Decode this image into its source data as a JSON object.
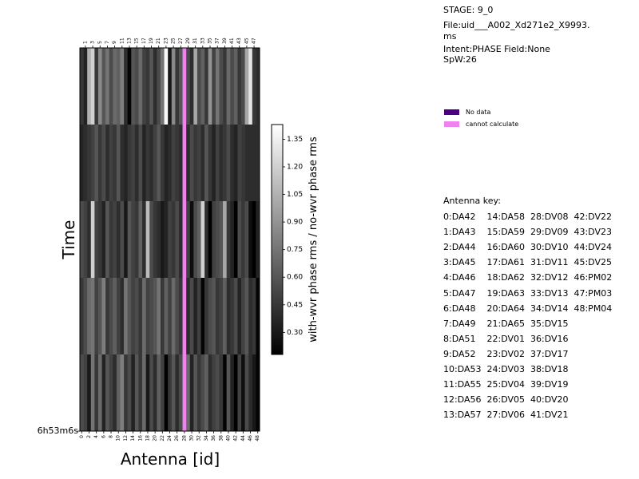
{
  "info": {
    "stage": "STAGE: 9_0",
    "file_line1": "File:uid___A002_Xd271e2_X9993.",
    "file_line2": "ms",
    "intent": "Intent:PHASE Field:None",
    "spw": "SpW:26"
  },
  "legend": {
    "items": [
      {
        "label": "No data",
        "color": "#4b0082"
      },
      {
        "label": "cannot calculate",
        "color": "#ee82ee"
      }
    ]
  },
  "antenna_key": {
    "title": "Antenna key:",
    "lines": [
      "0:DA42    14:DA58  28:DV08  42:DV22",
      "1:DA43    15:DA59  29:DV09  43:DV23",
      "2:DA44    16:DA60  30:DV10  44:DV24",
      "3:DA45    17:DA61  31:DV11  45:DV25",
      "4:DA46    18:DA62  32:DV12  46:PM02",
      "5:DA47    19:DA63  33:DV13  47:PM03",
      "6:DA48    20:DA64  34:DV14  48:PM04",
      "7:DA49    21:DA65  35:DV15",
      "8:DA51    22:DV01  36:DV16",
      "9:DA52    23:DV02  37:DV17",
      "10:DA53  24:DV03  38:DV18",
      "11:DA55  25:DV04  39:DV19",
      "12:DA56  26:DV05  40:DV20",
      "13:DA57  27:DV06  41:DV21"
    ]
  },
  "chart_data": {
    "type": "heatmap",
    "xlabel": "Antenna [id]",
    "ylabel": "Time",
    "y_tick_label": "6h53m6s",
    "colorbar": {
      "label": "with-wvr phase rms / no-wvr phase rms",
      "range": [
        0.18,
        1.43
      ],
      "ticks": [
        0.3,
        0.45,
        0.6,
        0.75,
        0.9,
        1.05,
        1.2,
        1.35
      ],
      "tick_labels": [
        "0.30",
        "0.45",
        "0.60",
        "0.75",
        "0.90",
        "1.05",
        "1.20",
        "1.35"
      ]
    },
    "x_ticks_top": [
      "1",
      "3",
      "5",
      "7",
      "9",
      "11",
      "13",
      "15",
      "17",
      "19",
      "21",
      "23",
      "25",
      "27",
      "29",
      "31",
      "33",
      "35",
      "37",
      "39",
      "41",
      "43",
      "45",
      "47"
    ],
    "x_ticks_bottom": [
      "0",
      "2",
      "4",
      "6",
      "8",
      "10",
      "12",
      "14",
      "16",
      "18",
      "20",
      "22",
      "24",
      "26",
      "28",
      "30",
      "32",
      "34",
      "36",
      "38",
      "40",
      "42",
      "44",
      "46",
      "48"
    ],
    "n_antennas": 49,
    "special_cells": {
      "cannot_calculate_antennas": [
        28
      ]
    },
    "rows": [
      [
        0.45,
        0.35,
        1.05,
        1.2,
        0.45,
        0.85,
        0.6,
        0.75,
        0.55,
        0.7,
        0.65,
        0.8,
        0.4,
        0.2,
        0.6,
        0.55,
        0.7,
        0.5,
        0.45,
        0.6,
        0.4,
        0.55,
        0.75,
        1.4,
        0.3,
        0.85,
        0.45,
        0.6,
        null,
        0.55,
        0.4,
        1.0,
        0.55,
        0.65,
        0.45,
        0.9,
        0.5,
        0.75,
        0.55,
        0.45,
        0.7,
        0.55,
        0.65,
        0.45,
        0.55,
        1.0,
        1.3,
        0.45,
        0.4
      ],
      [
        0.35,
        0.4,
        0.45,
        0.5,
        0.6,
        0.45,
        0.55,
        0.4,
        0.5,
        0.45,
        0.6,
        0.4,
        0.35,
        0.45,
        0.5,
        0.4,
        0.55,
        0.35,
        0.45,
        0.4,
        0.5,
        0.6,
        0.45,
        0.35,
        0.4,
        0.5,
        0.45,
        0.4,
        null,
        0.4,
        0.55,
        0.45,
        0.5,
        0.4,
        0.6,
        0.45,
        0.35,
        0.5,
        0.4,
        0.45,
        0.55,
        0.4,
        0.35,
        0.5,
        0.45,
        0.4,
        0.4,
        0.4,
        0.4
      ],
      [
        0.55,
        0.5,
        0.4,
        1.2,
        0.5,
        0.45,
        0.35,
        0.6,
        0.45,
        0.5,
        0.4,
        0.55,
        0.3,
        0.6,
        0.5,
        0.45,
        0.65,
        0.4,
        1.1,
        0.55,
        0.45,
        0.4,
        0.3,
        0.35,
        0.5,
        0.45,
        0.55,
        0.4,
        null,
        0.5,
        0.25,
        0.55,
        0.65,
        1.2,
        0.4,
        0.15,
        0.5,
        0.55,
        0.6,
        1.0,
        0.45,
        0.35,
        0.15,
        0.55,
        0.45,
        0.55,
        0.25,
        0.15,
        0.35
      ],
      [
        0.45,
        0.55,
        0.7,
        0.75,
        0.5,
        0.6,
        0.8,
        0.45,
        0.55,
        0.65,
        0.5,
        0.4,
        0.75,
        0.6,
        0.5,
        0.55,
        0.45,
        0.7,
        0.5,
        0.55,
        0.6,
        0.75,
        0.45,
        0.65,
        0.5,
        0.7,
        0.55,
        0.45,
        null,
        0.4,
        0.55,
        0.35,
        0.5,
        0.2,
        0.45,
        0.55,
        0.6,
        0.45,
        0.5,
        0.65,
        0.4,
        0.45,
        0.55,
        0.35,
        0.5,
        0.6,
        0.4,
        0.45,
        0.2
      ],
      [
        0.55,
        0.5,
        0.3,
        0.75,
        0.45,
        0.7,
        0.35,
        0.6,
        0.5,
        0.4,
        0.65,
        0.8,
        0.45,
        0.55,
        0.35,
        0.6,
        0.45,
        0.7,
        0.3,
        0.55,
        0.4,
        0.65,
        0.5,
        0.15,
        0.45,
        0.6,
        0.4,
        0.55,
        null,
        0.7,
        0.35,
        0.6,
        0.45,
        0.55,
        0.65,
        0.4,
        0.5,
        0.55,
        0.45,
        0.2,
        0.6,
        0.35,
        0.15,
        0.5,
        0.25,
        0.55,
        0.4,
        0.3,
        0.2
      ]
    ]
  }
}
